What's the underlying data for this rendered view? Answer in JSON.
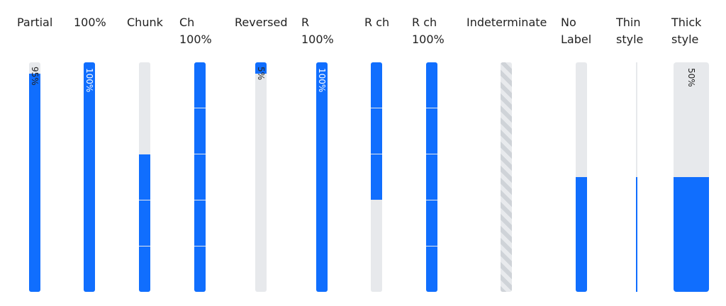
{
  "colors": {
    "accent": "#106efe",
    "track": "#e7e9ec",
    "divider": "#ffffff"
  },
  "bars": [
    {
      "id": "partial",
      "label": [
        "Partial"
      ],
      "value": 0.95,
      "value_text": "95%",
      "style": "normal",
      "direction": "bottom-up"
    },
    {
      "id": "full",
      "label": [
        "100%"
      ],
      "value": 1.0,
      "value_text": "100%",
      "style": "normal",
      "direction": "bottom-up"
    },
    {
      "id": "chunk",
      "label": [
        "Chunk"
      ],
      "chunks": 5,
      "filled_chunks": 3,
      "style": "chunk",
      "direction": "bottom-up"
    },
    {
      "id": "ch-100",
      "label": [
        "Ch",
        "100%"
      ],
      "chunks": 5,
      "filled_chunks": 5,
      "style": "chunk",
      "direction": "bottom-up"
    },
    {
      "id": "reversed",
      "label": [
        "Reversed"
      ],
      "value": 0.05,
      "value_text": "5%",
      "style": "normal",
      "direction": "top-down"
    },
    {
      "id": "r-100",
      "label": [
        "R",
        "100%"
      ],
      "value": 1.0,
      "value_text": "100%",
      "style": "normal",
      "direction": "top-down"
    },
    {
      "id": "r-ch",
      "label": [
        "R ch"
      ],
      "chunks": 5,
      "filled_chunks": 3,
      "style": "chunk",
      "direction": "top-down"
    },
    {
      "id": "r-ch-100",
      "label": [
        "R ch",
        "100%"
      ],
      "chunks": 5,
      "filled_chunks": 5,
      "style": "chunk",
      "direction": "top-down"
    },
    {
      "id": "indeterminate",
      "label": [
        "Indeterminate"
      ],
      "style": "indeterminate"
    },
    {
      "id": "no-label",
      "label": [
        "No",
        "Label"
      ],
      "value": 0.5,
      "style": "normal",
      "direction": "bottom-up"
    },
    {
      "id": "thin",
      "label": [
        "Thin",
        "style"
      ],
      "value": 0.5,
      "style": "thin",
      "direction": "bottom-up"
    },
    {
      "id": "thick",
      "label": [
        "Thick",
        "style"
      ],
      "value": 0.5,
      "value_text": "50%",
      "style": "thick",
      "direction": "bottom-up"
    }
  ]
}
